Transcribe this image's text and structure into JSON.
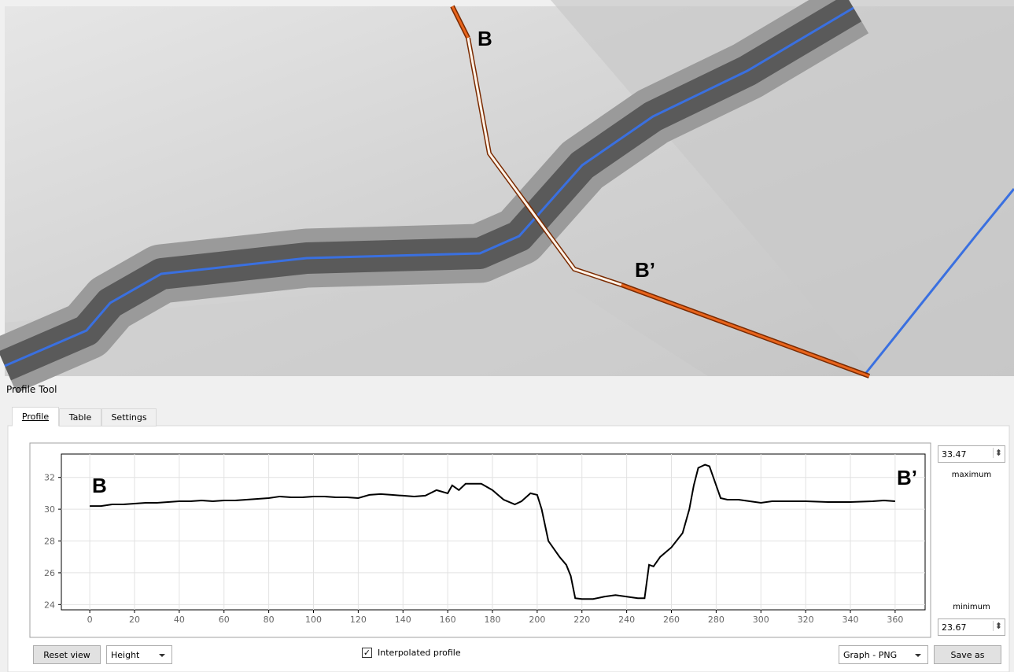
{
  "map": {
    "labels": [
      "B",
      "B’"
    ]
  },
  "panel": {
    "title": "Profile Tool",
    "tabs": [
      "Profile",
      "Table",
      "Settings"
    ],
    "maximum_label": "maximum",
    "minimum_label": "minimum",
    "buttons": {
      "reset": "Reset view",
      "mode": "Height",
      "interpolated": "Interpolated profile",
      "export": "Graph - PNG",
      "save": "Save as"
    }
  },
  "chart_data": {
    "type": "line",
    "color": "#000000",
    "grid": true,
    "annotations": [
      "B",
      "B’"
    ],
    "x": [
      0,
      5,
      10,
      15,
      20,
      25,
      30,
      35,
      40,
      45,
      50,
      55,
      60,
      65,
      70,
      75,
      80,
      85,
      90,
      95,
      100,
      105,
      110,
      115,
      120,
      125,
      130,
      135,
      140,
      145,
      150,
      155,
      160,
      162,
      165,
      168,
      175,
      180,
      185,
      190,
      193,
      197,
      200,
      202,
      205,
      210,
      213,
      215,
      217,
      220,
      225,
      230,
      235,
      240,
      245,
      248,
      250,
      252,
      255,
      260,
      265,
      268,
      270,
      272,
      275,
      277,
      280,
      282,
      285,
      290,
      295,
      300,
      305,
      310,
      320,
      330,
      340,
      350,
      355,
      360
    ],
    "values": [
      30.2,
      30.2,
      30.3,
      30.3,
      30.35,
      30.4,
      30.4,
      30.45,
      30.5,
      30.5,
      30.55,
      30.5,
      30.55,
      30.55,
      30.6,
      30.65,
      30.7,
      30.8,
      30.75,
      30.75,
      30.8,
      30.8,
      30.75,
      30.75,
      30.7,
      30.9,
      30.95,
      30.9,
      30.85,
      30.8,
      30.85,
      31.2,
      31.0,
      31.5,
      31.2,
      31.6,
      31.6,
      31.2,
      30.6,
      30.3,
      30.5,
      31.0,
      30.9,
      30.0,
      28.0,
      27.0,
      26.5,
      25.8,
      24.4,
      24.35,
      24.35,
      24.5,
      24.6,
      24.5,
      24.4,
      24.4,
      26.5,
      26.4,
      27.0,
      27.6,
      28.5,
      30.0,
      31.5,
      32.6,
      32.8,
      32.7,
      31.5,
      30.7,
      30.6,
      30.6,
      30.5,
      30.4,
      30.5,
      30.5,
      30.5,
      30.45,
      30.45,
      30.5,
      30.55,
      30.5
    ],
    "xlim": [
      -12.7,
      373.4
    ],
    "ylim": [
      23.67,
      33.47
    ],
    "xticks": [
      0,
      20,
      40,
      60,
      80,
      100,
      120,
      140,
      160,
      180,
      200,
      220,
      240,
      260,
      280,
      300,
      320,
      340,
      360
    ],
    "yticks": [
      24,
      26,
      28,
      30,
      32
    ]
  }
}
